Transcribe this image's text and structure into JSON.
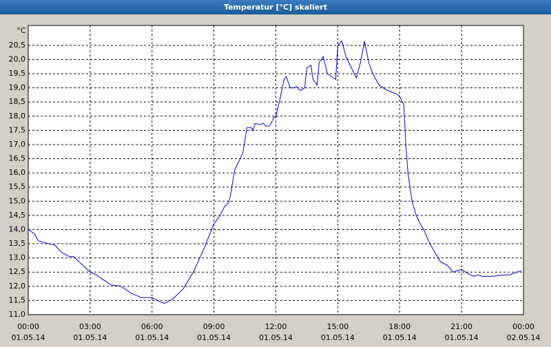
{
  "chart_data": {
    "type": "line",
    "title": "Temperatur [°C] skaliert",
    "y_unit": "°C",
    "x": [
      0,
      0.3,
      0.5,
      1,
      1.3,
      1.6,
      2,
      2.2,
      2.4,
      2.7,
      3.0,
      3.3,
      3.6,
      4.0,
      4.5,
      5.0,
      5.5,
      6.0,
      6.4,
      6.6,
      7.0,
      7.5,
      8.0,
      8.5,
      9.0,
      9.3,
      9.5,
      9.7,
      9.8,
      10.0,
      10.2,
      10.4,
      10.6,
      10.8,
      10.9,
      11.0,
      11.2,
      11.4,
      11.5,
      11.7,
      11.9,
      12.0,
      12.1,
      12.2,
      12.4,
      12.5,
      12.7,
      12.9,
      13.0,
      13.2,
      13.4,
      13.5,
      13.7,
      13.8,
      14.0,
      14.1,
      14.3,
      14.5,
      14.7,
      14.9,
      15.0,
      15.2,
      15.4,
      15.6,
      15.9,
      16.1,
      16.3,
      16.5,
      16.7,
      17.0,
      17.3,
      17.6,
      17.8,
      18.0,
      18.2,
      18.3,
      18.4,
      18.6,
      18.8,
      19.0,
      19.2,
      19.4,
      19.7,
      20.0,
      20.3,
      20.6,
      21.0,
      21.3,
      21.6,
      21.8,
      22.0,
      22.5,
      23.0,
      23.3,
      23.7,
      23.9
    ],
    "values": [
      14.0,
      13.85,
      13.6,
      13.5,
      13.45,
      13.2,
      13.05,
      13.05,
      12.9,
      12.7,
      12.5,
      12.4,
      12.25,
      12.05,
      12.0,
      11.75,
      11.6,
      11.6,
      11.45,
      11.4,
      11.55,
      11.9,
      12.5,
      13.3,
      14.2,
      14.5,
      14.8,
      14.95,
      15.2,
      16.1,
      16.4,
      16.7,
      17.6,
      17.6,
      17.5,
      17.75,
      17.7,
      17.75,
      17.65,
      17.65,
      17.95,
      18.0,
      18.3,
      18.6,
      19.3,
      19.4,
      19.0,
      19.0,
      19.05,
      18.9,
      19.0,
      19.7,
      19.8,
      19.3,
      19.1,
      19.9,
      20.1,
      19.5,
      19.4,
      19.3,
      20.5,
      20.65,
      20.1,
      19.8,
      19.35,
      19.9,
      20.65,
      19.9,
      19.5,
      19.1,
      18.95,
      18.85,
      18.8,
      18.7,
      18.4,
      17.0,
      16.0,
      15.0,
      14.5,
      14.2,
      13.95,
      13.6,
      13.2,
      12.85,
      12.75,
      12.5,
      12.6,
      12.45,
      12.35,
      12.4,
      12.35,
      12.35,
      12.4,
      12.4,
      12.5,
      12.55
    ],
    "color": "#0000c8",
    "xlim": [
      0,
      24
    ],
    "xticks": [
      {
        "value": 0,
        "label": "00:00"
      },
      {
        "value": 3,
        "label": "03:00"
      },
      {
        "value": 6,
        "label": "06:00"
      },
      {
        "value": 9,
        "label": "09:00"
      },
      {
        "value": 12,
        "label": "12:00"
      },
      {
        "value": 15,
        "label": "15:00"
      },
      {
        "value": 18,
        "label": "18:00"
      },
      {
        "value": 21,
        "label": "21:00"
      },
      {
        "value": 24,
        "label": "00:00"
      }
    ],
    "xtick_dates": [
      "01.05.14",
      "01.05.14",
      "01.05.14",
      "01.05.14",
      "01.05.14",
      "01.05.14",
      "01.05.14",
      "01.05.14",
      "02.05.14"
    ],
    "ylim": [
      11,
      21.2
    ],
    "yticks": [
      {
        "value": 11,
        "label": "11,0"
      },
      {
        "value": 11.5,
        "label": "11,5"
      },
      {
        "value": 12,
        "label": "12,0"
      },
      {
        "value": 12.5,
        "label": "12,5"
      },
      {
        "value": 13,
        "label": "13,0"
      },
      {
        "value": 13.5,
        "label": "13,5"
      },
      {
        "value": 14,
        "label": "14,0"
      },
      {
        "value": 14.5,
        "label": "14,5"
      },
      {
        "value": 15,
        "label": "15,0"
      },
      {
        "value": 15.5,
        "label": "15,5"
      },
      {
        "value": 16,
        "label": "16,0"
      },
      {
        "value": 16.5,
        "label": "16,5"
      },
      {
        "value": 17,
        "label": "17,0"
      },
      {
        "value": 17.5,
        "label": "17,5"
      },
      {
        "value": 18,
        "label": "18,0"
      },
      {
        "value": 18.5,
        "label": "18,5"
      },
      {
        "value": 19,
        "label": "19,0"
      },
      {
        "value": 19.5,
        "label": "19,5"
      },
      {
        "value": 20,
        "label": "20,0"
      },
      {
        "value": 20.5,
        "label": "20,5"
      }
    ],
    "grid": true
  }
}
